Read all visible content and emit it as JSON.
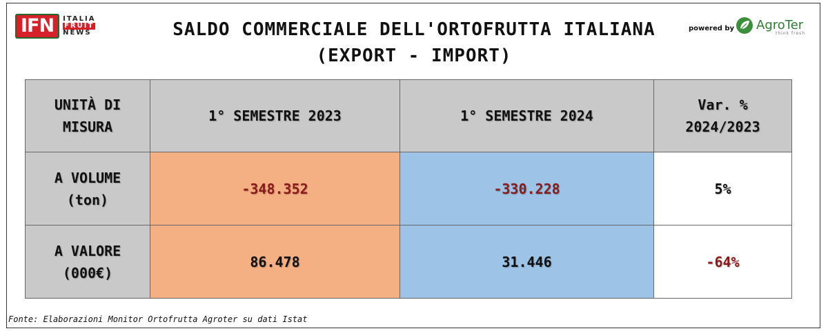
{
  "logo": {
    "ifn": "IFN",
    "line1": "ITALIA",
    "line2": "FRUIT",
    "line3": "NEWS"
  },
  "title_line1": "SALDO COMMERCIALE DELL'ORTOFRUTTA ITALIANA",
  "title_line2": "(EXPORT - IMPORT)",
  "powered_by": "powered by",
  "sponsor": {
    "name": "AgroTer",
    "tagline": "think fresh",
    "icon": "agroter-leaf-icon"
  },
  "chart_data": {
    "type": "table",
    "columns": [
      "UNITÀ DI MISURA",
      "1° SEMESTRE 2023",
      "1° SEMESTRE 2024",
      "Var. % 2024/2023"
    ],
    "column_lines": {
      "unit": [
        "UNITÀ DI",
        "MISURA"
      ],
      "h2023": "1° SEMESTRE 2023",
      "h2024": "1° SEMESTRE 2024",
      "var": [
        "Var. %",
        "2024/2023"
      ]
    },
    "rows": [
      {
        "label_lines": [
          "A VOLUME",
          "(ton)"
        ],
        "v2023": "-348.352",
        "v2024": "-330.228",
        "var": "5%"
      },
      {
        "label_lines": [
          "A VALORE",
          "(000€)"
        ],
        "v2023": "86.478",
        "v2024": "31.446",
        "var": "-64%"
      }
    ],
    "colors": {
      "header": "#c9c9c9",
      "col_2023": "#f4b083",
      "col_2024": "#9dc3e6",
      "negative_text": "#8b1a1a"
    }
  },
  "source": "Fonte: Elaborazioni Monitor Ortofrutta Agroter su dati Istat"
}
